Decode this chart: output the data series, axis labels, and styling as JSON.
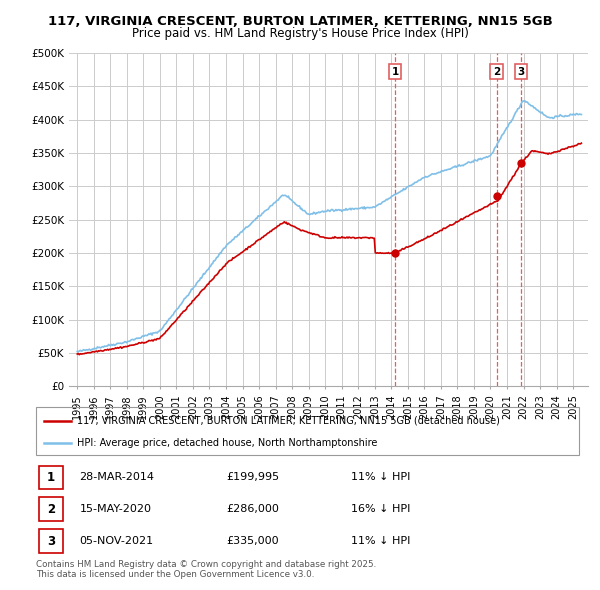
{
  "title_line1": "117, VIRGINIA CRESCENT, BURTON LATIMER, KETTERING, NN15 5GB",
  "title_line2": "Price paid vs. HM Land Registry's House Price Index (HPI)",
  "background_color": "#ffffff",
  "plot_bg_color": "#ffffff",
  "grid_color": "#cccccc",
  "hpi_color": "#7fbfe8",
  "price_color": "#cc0000",
  "dashed_line_color": "#e06060",
  "sale_dates": [
    2014.23,
    2020.37,
    2021.84
  ],
  "sale_prices": [
    199995,
    286000,
    335000
  ],
  "sale_labels": [
    "1",
    "2",
    "3"
  ],
  "legend_line1": "117, VIRGINIA CRESCENT, BURTON LATIMER, KETTERING, NN15 5GB (detached house)",
  "legend_line2": "HPI: Average price, detached house, North Northamptonshire",
  "table_data": [
    [
      "1",
      "28-MAR-2014",
      "£199,995",
      "11% ↓ HPI"
    ],
    [
      "2",
      "15-MAY-2020",
      "£286,000",
      "16% ↓ HPI"
    ],
    [
      "3",
      "05-NOV-2021",
      "£335,000",
      "11% ↓ HPI"
    ]
  ],
  "footer": "Contains HM Land Registry data © Crown copyright and database right 2025.\nThis data is licensed under the Open Government Licence v3.0.",
  "ylim": [
    0,
    500000
  ],
  "yticks": [
    0,
    50000,
    100000,
    150000,
    200000,
    250000,
    300000,
    350000,
    400000,
    450000,
    500000
  ],
  "ytick_labels": [
    "£0",
    "£50K",
    "£100K",
    "£150K",
    "£200K",
    "£250K",
    "£300K",
    "£350K",
    "£400K",
    "£450K",
    "£500K"
  ],
  "xlim_start": 1994.5,
  "xlim_end": 2025.9
}
